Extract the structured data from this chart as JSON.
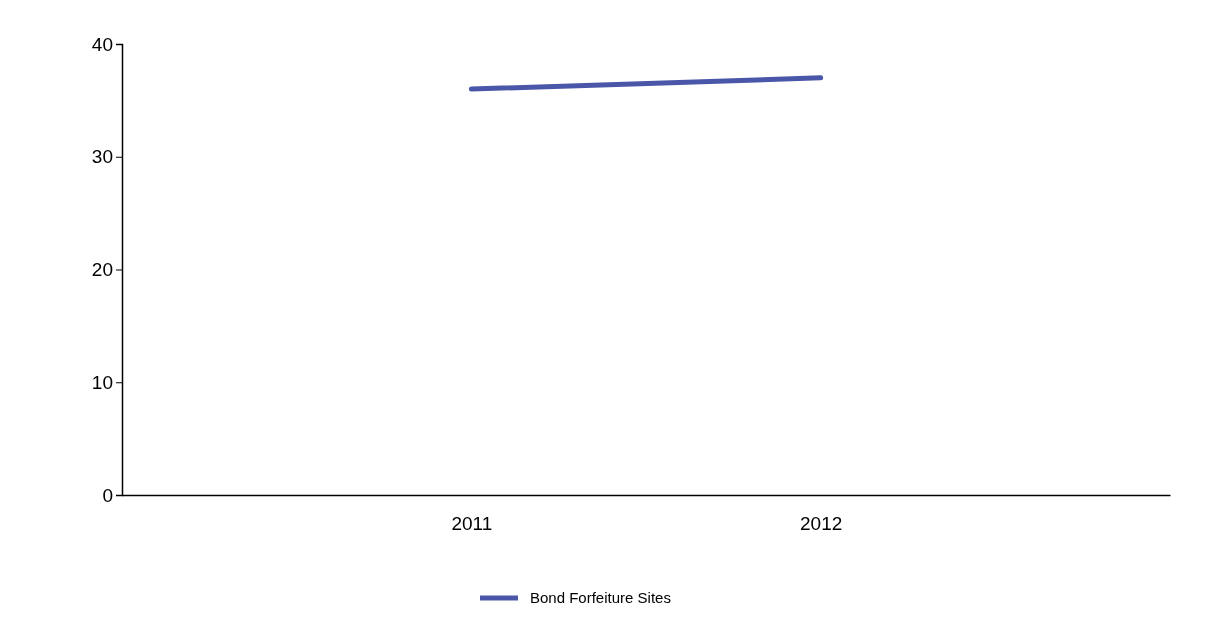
{
  "chart_data": {
    "type": "line",
    "categories": [
      "2011",
      "2012"
    ],
    "series": [
      {
        "name": "Bond Forfeiture Sites",
        "color": "#4a56a8",
        "values": [
          36,
          37
        ]
      }
    ],
    "ylim": [
      0,
      40
    ],
    "yticks": [
      0,
      10,
      20,
      30,
      40
    ],
    "grid": false,
    "legend": "bottom",
    "marker": "none",
    "line_style": "solid"
  }
}
